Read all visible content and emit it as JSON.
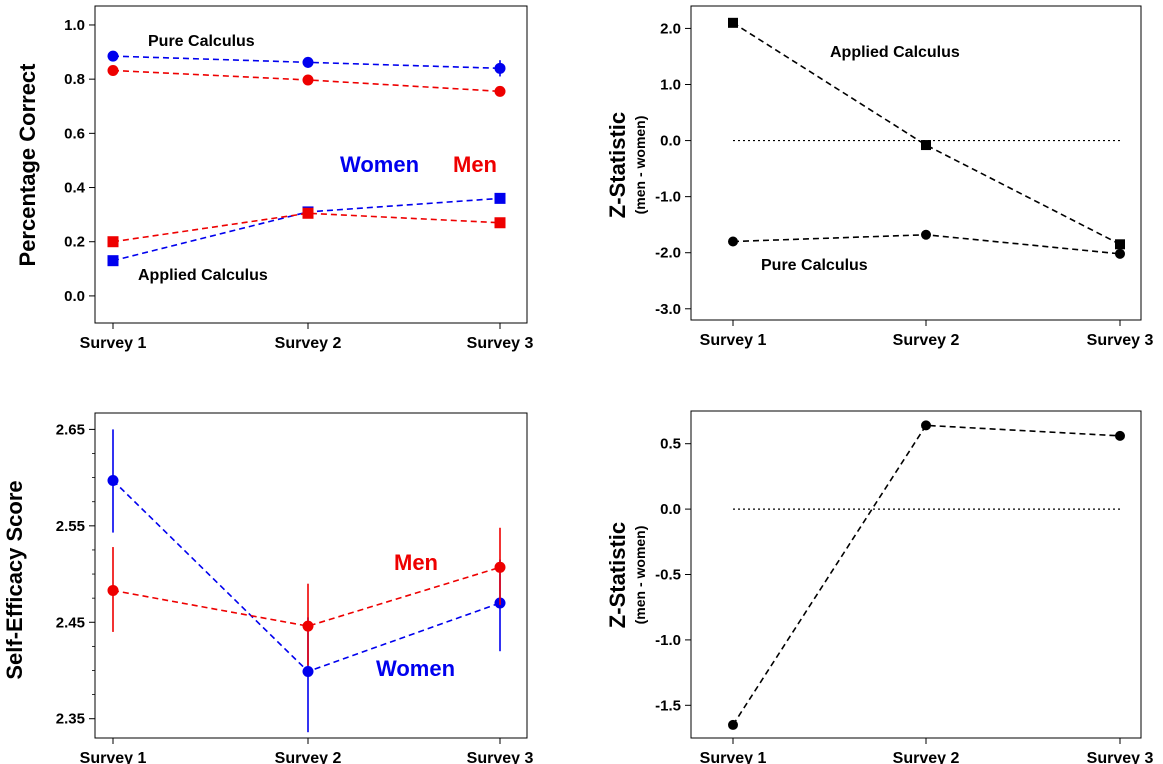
{
  "colors": {
    "women": "#0000ee",
    "men": "#ee0000",
    "diff": "#000000"
  },
  "chart_data": [
    {
      "type": "line",
      "categories": [
        "Survey 1",
        "Survey 2",
        "Survey 3"
      ],
      "ylabel": "Percentage Correct",
      "ylim": [
        -0.1,
        1.07
      ],
      "yticks": [
        "0.0",
        "0.2",
        "0.4",
        "0.6",
        "0.8",
        "1.0"
      ],
      "series": [
        {
          "group": "Pure Calculus",
          "name": "Women",
          "color": "women",
          "marker": "circle",
          "values": [
            0.885,
            0.862,
            0.84
          ],
          "err": [
            0.012,
            0.02,
            0.03
          ]
        },
        {
          "group": "Pure Calculus",
          "name": "Men",
          "color": "men",
          "marker": "circle",
          "values": [
            0.832,
            0.797,
            0.755
          ],
          "err": [
            0.0,
            0.0,
            0.0
          ]
        },
        {
          "group": "Applied Calculus",
          "name": "Women",
          "color": "women",
          "marker": "square",
          "values": [
            0.13,
            0.31,
            0.36
          ],
          "err": [
            0,
            0,
            0
          ]
        },
        {
          "group": "Applied Calculus",
          "name": "Men",
          "color": "men",
          "marker": "square",
          "values": [
            0.2,
            0.305,
            0.27
          ],
          "err": [
            0,
            0,
            0
          ]
        }
      ],
      "annotations": {
        "pure": "Pure Calculus",
        "applied": "Applied Calculus",
        "women": "Women",
        "men": "Men"
      }
    },
    {
      "type": "line",
      "categories": [
        "Survey 1",
        "Survey 2",
        "Survey 3"
      ],
      "ylabel": "Z-Statistic",
      "ylabel_sub": "(men - women)",
      "ylim": [
        -3.2,
        2.4
      ],
      "yticks": [
        "-3.0",
        "-2.0",
        "-1.0",
        "0.0",
        "1.0",
        "2.0"
      ],
      "series": [
        {
          "name": "Applied Calculus",
          "marker": "square",
          "values": [
            2.1,
            -0.08,
            -1.85
          ]
        },
        {
          "name": "Pure Calculus",
          "marker": "circle",
          "values": [
            -1.8,
            -1.68,
            -2.02
          ]
        }
      ],
      "annotations": {
        "applied": "Applied Calculus",
        "pure": "Pure Calculus"
      }
    },
    {
      "type": "line",
      "categories": [
        "Survey 1",
        "Survey 2",
        "Survey 3"
      ],
      "ylabel": "Self-Efficacy Score",
      "ylim": [
        2.33,
        2.667
      ],
      "yticks": [
        "2.35",
        "2.45",
        "2.55",
        "2.65"
      ],
      "series": [
        {
          "name": "Women",
          "color": "women",
          "values": [
            2.597,
            2.399,
            2.47
          ],
          "lo": [
            2.543,
            2.336,
            2.42
          ],
          "hi": [
            2.65,
            2.455,
            2.515
          ]
        },
        {
          "name": "Men",
          "color": "men",
          "values": [
            2.483,
            2.446,
            2.507
          ],
          "lo": [
            2.44,
            2.405,
            2.468
          ],
          "hi": [
            2.528,
            2.49,
            2.548
          ]
        }
      ],
      "annotations": {
        "men": "Men",
        "women": "Women"
      }
    },
    {
      "type": "line",
      "categories": [
        "Survey 1",
        "Survey 2",
        "Survey 3"
      ],
      "ylabel": "Z-Statistic",
      "ylabel_sub": "(men - women)",
      "ylim": [
        -1.75,
        0.75
      ],
      "yticks": [
        "-1.5",
        "-1.0",
        "-0.5",
        "0.0",
        "0.5"
      ],
      "series": [
        {
          "name": "Z",
          "marker": "circle",
          "values": [
            -1.65,
            0.64,
            0.56
          ]
        }
      ]
    }
  ]
}
